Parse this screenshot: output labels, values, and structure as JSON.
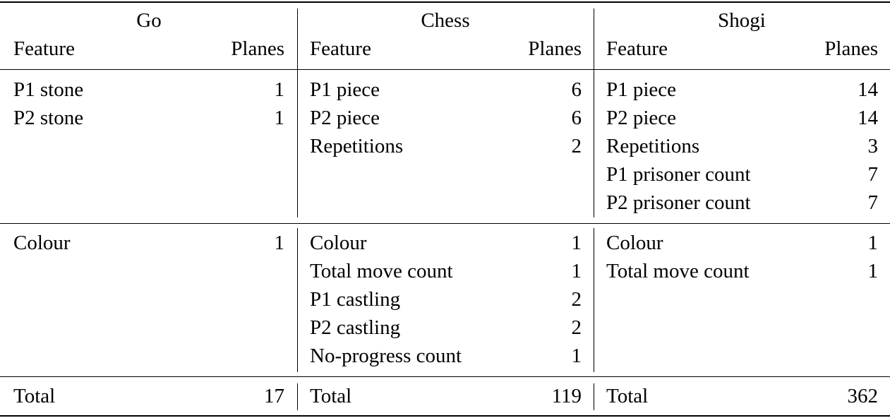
{
  "games": [
    {
      "name": "Go",
      "feature_header": "Feature",
      "planes_header": "Planes",
      "history_rows": [
        {
          "feature": "P1 stone",
          "planes": "1"
        },
        {
          "feature": "P2 stone",
          "planes": "1"
        }
      ],
      "constant_rows": [
        {
          "feature": "Colour",
          "planes": "1"
        }
      ],
      "total_label": "Total",
      "total_value": "17"
    },
    {
      "name": "Chess",
      "feature_header": "Feature",
      "planes_header": "Planes",
      "history_rows": [
        {
          "feature": "P1 piece",
          "planes": "6"
        },
        {
          "feature": "P2 piece",
          "planes": "6"
        },
        {
          "feature": "Repetitions",
          "planes": "2"
        }
      ],
      "constant_rows": [
        {
          "feature": "Colour",
          "planes": "1"
        },
        {
          "feature": "Total move count",
          "planes": "1"
        },
        {
          "feature": "P1 castling",
          "planes": "2"
        },
        {
          "feature": "P2 castling",
          "planes": "2"
        },
        {
          "feature": "No-progress count",
          "planes": "1"
        }
      ],
      "total_label": "Total",
      "total_value": "119"
    },
    {
      "name": "Shogi",
      "feature_header": "Feature",
      "planes_header": "Planes",
      "history_rows": [
        {
          "feature": "P1 piece",
          "planes": "14"
        },
        {
          "feature": "P2 piece",
          "planes": "14"
        },
        {
          "feature": "Repetitions",
          "planes": "3"
        },
        {
          "feature": "P1 prisoner count",
          "planes": "7"
        },
        {
          "feature": "P2 prisoner count",
          "planes": "7"
        }
      ],
      "constant_rows": [
        {
          "feature": "Colour",
          "planes": "1"
        },
        {
          "feature": "Total move count",
          "planes": "1"
        }
      ],
      "total_label": "Total",
      "total_value": "362"
    }
  ]
}
